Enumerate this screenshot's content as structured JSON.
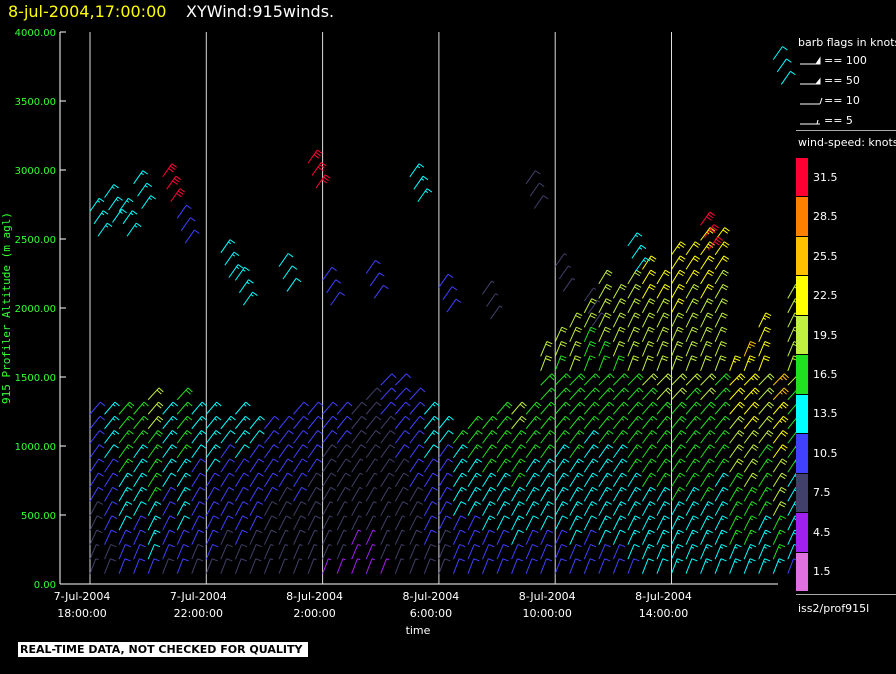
{
  "header": {
    "date": "8-jul-2004,17:00:00",
    "name": "XYWind:915winds."
  },
  "chart_data": {
    "type": "wind-barb",
    "ylabel": "915 Profiler Altitude (m agl)",
    "xlabel": "time",
    "ylim": [
      0,
      4000
    ],
    "yticks": [
      "0.00",
      "500.00",
      "1000.00",
      "1500.00",
      "2000.00",
      "2500.00",
      "3000.00",
      "3500.00",
      "4000.00"
    ],
    "x_range_hours": [
      "7-Jul-2004 16:30",
      "8-Jul-2004 17:00"
    ],
    "xticks": [
      {
        "date": "7-Jul-2004",
        "time": "18:00:00"
      },
      {
        "date": "7-Jul-2004",
        "time": "22:00:00"
      },
      {
        "date": "8-Jul-2004",
        "time": "2:00:00"
      },
      {
        "date": "8-Jul-2004",
        "time": "6:00:00"
      },
      {
        "date": "8-Jul-2004",
        "time": "10:00:00"
      },
      {
        "date": "8-Jul-2004",
        "time": "14:00:00"
      }
    ],
    "grid": "vertical lines at x ticks",
    "series_note": "wind barbs every ~30 min, colored by wind speed (knots)",
    "barb_profiles": [
      {
        "time_h": 0.0,
        "top_m": 1300,
        "speed": 12
      },
      {
        "time_h": 0.5,
        "top_m": 1300,
        "speed": 14
      },
      {
        "time_h": 1.0,
        "top_m": 1250,
        "speed": 18
      },
      {
        "time_h": 1.5,
        "top_m": 1300,
        "speed": 17
      },
      {
        "time_h": 2.0,
        "top_m": 1350,
        "speed": 20
      },
      {
        "time_h": 2.5,
        "top_m": 1250,
        "speed": 15
      },
      {
        "time_h": 3.0,
        "top_m": 1350,
        "speed": 18
      },
      {
        "time_h": 3.5,
        "top_m": 1300,
        "speed": 14
      },
      {
        "time_h": 4.0,
        "top_m": 1300,
        "speed": 15
      },
      {
        "time_h": 4.5,
        "top_m": 1200,
        "speed": 13
      },
      {
        "time_h": 5.0,
        "top_m": 1250,
        "speed": 14
      },
      {
        "time_h": 5.5,
        "top_m": 1200,
        "speed": 13
      },
      {
        "time_h": 6.0,
        "top_m": 1200,
        "speed": 12
      },
      {
        "time_h": 6.5,
        "top_m": 1150,
        "speed": 11
      },
      {
        "time_h": 7.0,
        "top_m": 1250,
        "speed": 12
      },
      {
        "time_h": 7.5,
        "top_m": 1300,
        "speed": 11
      },
      {
        "time_h": 8.0,
        "top_m": 1250,
        "speed": 10
      },
      {
        "time_h": 8.5,
        "top_m": 1250,
        "speed": 10
      },
      {
        "time_h": 9.0,
        "top_m": 1300,
        "speed": 9
      },
      {
        "time_h": 9.5,
        "top_m": 1400,
        "speed": 9
      },
      {
        "time_h": 10.0,
        "top_m": 1500,
        "speed": 10
      },
      {
        "time_h": 10.5,
        "top_m": 1450,
        "speed": 11
      },
      {
        "time_h": 11.0,
        "top_m": 1400,
        "speed": 12
      },
      {
        "time_h": 11.5,
        "top_m": 1300,
        "speed": 14
      },
      {
        "time_h": 12.0,
        "top_m": 1200,
        "speed": 13
      },
      {
        "time_h": 12.5,
        "top_m": 1100,
        "speed": 16
      },
      {
        "time_h": 13.0,
        "top_m": 1150,
        "speed": 17
      },
      {
        "time_h": 13.5,
        "top_m": 1200,
        "speed": 18
      },
      {
        "time_h": 14.0,
        "top_m": 1250,
        "speed": 18
      },
      {
        "time_h": 14.5,
        "top_m": 1250,
        "speed": 19
      },
      {
        "time_h": 15.0,
        "top_m": 1300,
        "speed": 18
      },
      {
        "time_h": 15.5,
        "top_m": 1700,
        "speed": 19
      },
      {
        "time_h": 16.0,
        "top_m": 1800,
        "speed": 19
      },
      {
        "time_h": 16.5,
        "top_m": 1900,
        "speed": 20
      },
      {
        "time_h": 17.0,
        "top_m": 2000,
        "speed": 19
      },
      {
        "time_h": 17.5,
        "top_m": 2200,
        "speed": 20
      },
      {
        "time_h": 18.0,
        "top_m": 2100,
        "speed": 20
      },
      {
        "time_h": 18.5,
        "top_m": 2200,
        "speed": 21
      },
      {
        "time_h": 19.0,
        "top_m": 2300,
        "speed": 22
      },
      {
        "time_h": 19.5,
        "top_m": 2200,
        "speed": 22
      },
      {
        "time_h": 20.0,
        "top_m": 2400,
        "speed": 23
      },
      {
        "time_h": 20.5,
        "top_m": 2400,
        "speed": 22
      },
      {
        "time_h": 21.0,
        "top_m": 2500,
        "speed": 23
      },
      {
        "time_h": 21.5,
        "top_m": 2500,
        "speed": 22
      },
      {
        "time_h": 22.0,
        "top_m": 1600,
        "speed": 24
      },
      {
        "time_h": 22.5,
        "top_m": 1700,
        "speed": 25
      },
      {
        "time_h": 23.0,
        "top_m": 1900,
        "speed": 23
      },
      {
        "time_h": 23.5,
        "top_m": 1500,
        "speed": 26
      },
      {
        "time_h": 24.0,
        "top_m": 2100,
        "speed": 21
      }
    ],
    "upper_barbs": [
      {
        "time_h": 0.0,
        "alt_m": 2700,
        "speed": 13
      },
      {
        "time_h": 0.5,
        "alt_m": 2800,
        "speed": 13
      },
      {
        "time_h": 1.0,
        "alt_m": 2700,
        "speed": 13
      },
      {
        "time_h": 1.5,
        "alt_m": 2900,
        "speed": 14
      },
      {
        "time_h": 2.5,
        "alt_m": 2950,
        "speed": 32
      },
      {
        "time_h": 3.0,
        "alt_m": 2650,
        "speed": 11
      },
      {
        "time_h": 4.5,
        "alt_m": 2400,
        "speed": 13
      },
      {
        "time_h": 5.0,
        "alt_m": 2200,
        "speed": 13
      },
      {
        "time_h": 6.5,
        "alt_m": 2300,
        "speed": 12
      },
      {
        "time_h": 7.5,
        "alt_m": 3050,
        "speed": 32
      },
      {
        "time_h": 8.0,
        "alt_m": 2200,
        "speed": 10
      },
      {
        "time_h": 9.5,
        "alt_m": 2250,
        "speed": 10
      },
      {
        "time_h": 11.0,
        "alt_m": 2950,
        "speed": 13
      },
      {
        "time_h": 12.0,
        "alt_m": 2150,
        "speed": 9
      },
      {
        "time_h": 13.5,
        "alt_m": 2100,
        "speed": 7
      },
      {
        "time_h": 15.0,
        "alt_m": 2900,
        "speed": 8
      },
      {
        "time_h": 16.0,
        "alt_m": 2300,
        "speed": 6
      },
      {
        "time_h": 17.0,
        "alt_m": 2050,
        "speed": 7
      },
      {
        "time_h": 18.5,
        "alt_m": 2450,
        "speed": 14
      },
      {
        "time_h": 21.0,
        "alt_m": 2600,
        "speed": 32
      },
      {
        "time_h": 23.5,
        "alt_m": 3800,
        "speed": 12
      }
    ]
  },
  "legend": {
    "barb_title": "barb flags in knots",
    "barb_items": [
      "== 100",
      "== 50",
      "== 10",
      "== 5"
    ],
    "speed_title": "wind-speed: knots",
    "colorbar": [
      {
        "label": "31.5",
        "color": "#ff0033"
      },
      {
        "label": "28.5",
        "color": "#ff8000"
      },
      {
        "label": "25.5",
        "color": "#ffc000"
      },
      {
        "label": "22.5",
        "color": "#ffff00"
      },
      {
        "label": "19.5",
        "color": "#c0f040"
      },
      {
        "label": "16.5",
        "color": "#20e020"
      },
      {
        "label": "13.5",
        "color": "#00ffff"
      },
      {
        "label": "10.5",
        "color": "#4040ff"
      },
      {
        "label": "7.5",
        "color": "#40406a"
      },
      {
        "label": "4.5",
        "color": "#a020f0"
      },
      {
        "label": "1.5",
        "color": "#e070e0"
      }
    ],
    "station": "iss2/prof915l"
  },
  "footer": {
    "warning": "REAL-TIME DATA, NOT CHECKED FOR QUALITY"
  }
}
